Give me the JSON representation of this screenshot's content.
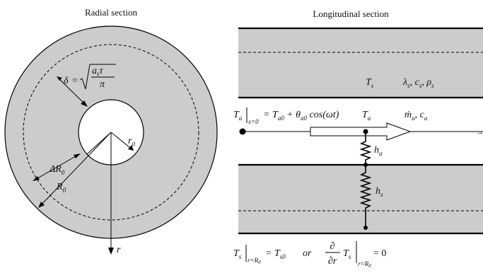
{
  "titles": {
    "radial": "Radial section",
    "longitudinal": "Longitudinal section"
  },
  "radial": {
    "delta": "δ",
    "eq": "=",
    "sqrt_num_a": "a",
    "sqrt_num_s": "s",
    "sqrt_num_tau": "τ",
    "sqrt_den": "π",
    "r0": "r",
    "r0_sub": "0",
    "dR0": "ΔR",
    "dR0_sub": "0",
    "R0": "R",
    "R0_sub": "0",
    "r_axis": "r"
  },
  "longitudinal": {
    "Ts": "T",
    "Ts_sub": "s",
    "props": "λ",
    "props_s1": "s",
    "props_c": ", c",
    "props_s2": "s",
    "props_rho": ", ρ",
    "props_s3": "s",
    "inlet_T": "T",
    "inlet_a": "a",
    "inlet_x0": "x=0",
    "inlet_eq": "= T",
    "inlet_a0": "a0",
    "inlet_plus": "+ θ",
    "inlet_a0b": "a0",
    "inlet_cos": "cos(ωt)",
    "Ta": "T",
    "Ta_sub": "a",
    "m_dot": "ṁ",
    "m_sub": "a",
    "c_a": ", c",
    "c_sub": "a",
    "ha": "h",
    "ha_sub": "a",
    "hs": "h",
    "hs_sub": "s"
  },
  "boundary": {
    "Ts": "T",
    "Ts_sub": "s",
    "rR0": "r=R",
    "rR0_sub": "0",
    "eq": "= T",
    "s0": "s0",
    "or": "or",
    "d": "∂",
    "dr": "∂r",
    "Ts2": "T",
    "Ts2_sub": "s",
    "rR0b": "r=R",
    "rR0b_sub": "0",
    "zero": "= 0"
  }
}
